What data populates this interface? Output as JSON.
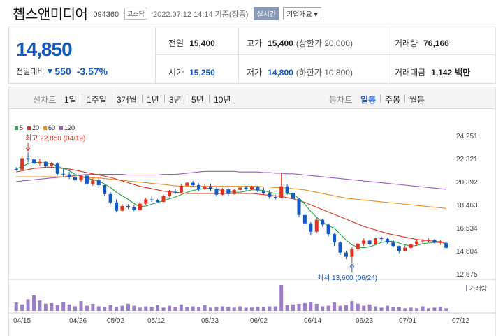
{
  "header": {
    "name": "쳅스앤미디어",
    "code": "094360",
    "market": "코스닥",
    "datetime": "2022.07.12 14:14 기준(장중)",
    "realtime_label": "실시간",
    "company_info_label": "기업개요 ▾"
  },
  "price": {
    "current": "14,850",
    "compare_label": "전일대비",
    "change": "550",
    "change_pct": "-3.57%"
  },
  "stats": {
    "prev_label": "전일",
    "prev": "15,400",
    "high_label": "고가",
    "high": "15,400",
    "upper_limit": "(상한가 20,000)",
    "volume_label": "거래량",
    "volume": "76,166",
    "open_label": "시가",
    "open": "15,250",
    "low_label": "저가",
    "low": "14,800",
    "lower_limit": "(하한가 10,800)",
    "amount_label": "거래대금",
    "amount": "1,142",
    "amount_unit": "백만"
  },
  "toolbar": {
    "line_label": "선차트",
    "line_items": [
      "1일",
      "1주일",
      "3개월",
      "1년",
      "3년",
      "5년",
      "10년"
    ],
    "candle_label": "봉차트",
    "candle_items": [
      "일봉",
      "주봉",
      "월봉"
    ],
    "active_candle": "일봉"
  },
  "colors": {
    "up": "#e0301e",
    "down": "#1259c3",
    "ma5": "#27a644",
    "ma20": "#e0301e",
    "ma60": "#f08c1c",
    "ma120": "#9b59c6",
    "volume": "#9b7fc6"
  },
  "chart_data": {
    "type": "candlestick",
    "legend": [
      "5",
      "20",
      "60",
      "120"
    ],
    "y_ticks": [
      "24,251",
      "22,321",
      "20,392",
      "18,463",
      "16,534",
      "14,604",
      "12,675"
    ],
    "ylim": [
      12675,
      24251
    ],
    "x_labels": [
      "04/15",
      "04/26",
      "05/02",
      "05/12",
      "05/23",
      "06/02",
      "06/14",
      "06/23",
      "07/01",
      "07/12"
    ],
    "volume_label": "거래량",
    "annotations": {
      "high": "최고 22,850 (04/19)",
      "low": "최저 13,600 (06/24)"
    },
    "candles": [
      [
        21450,
        21600,
        21300,
        21400
      ],
      [
        21400,
        22500,
        21300,
        22350
      ],
      [
        22350,
        22850,
        22000,
        22250
      ],
      [
        22250,
        22400,
        21800,
        21900
      ],
      [
        21900,
        22300,
        21700,
        22050
      ],
      [
        22050,
        22100,
        21600,
        21700
      ],
      [
        21700,
        22050,
        21500,
        21900
      ],
      [
        21900,
        22000,
        20900,
        21050
      ],
      [
        21050,
        21500,
        20800,
        21000
      ],
      [
        21000,
        21200,
        20600,
        20800
      ],
      [
        20800,
        20950,
        20400,
        20500
      ],
      [
        20500,
        21000,
        20350,
        20900
      ],
      [
        20900,
        21050,
        20100,
        20200
      ],
      [
        20200,
        20700,
        20050,
        20500
      ],
      [
        20500,
        20800,
        19850,
        20100
      ],
      [
        20100,
        20150,
        19200,
        19350
      ],
      [
        19350,
        19500,
        18500,
        18650
      ],
      [
        18650,
        18900,
        17800,
        17950
      ],
      [
        17950,
        18500,
        17900,
        18350
      ],
      [
        18350,
        18500,
        18100,
        18250
      ],
      [
        18250,
        18400,
        17900,
        18000
      ],
      [
        18000,
        18700,
        17950,
        18550
      ],
      [
        18550,
        19050,
        18450,
        18900
      ],
      [
        18900,
        19200,
        18700,
        18850
      ],
      [
        18850,
        18950,
        18600,
        18700
      ],
      [
        18700,
        19300,
        18650,
        19200
      ],
      [
        19200,
        19700,
        19100,
        19550
      ],
      [
        19550,
        19800,
        19350,
        19500
      ],
      [
        19500,
        20200,
        19400,
        20050
      ],
      [
        20050,
        20400,
        19950,
        20300
      ],
      [
        20300,
        20450,
        19950,
        20100
      ],
      [
        20100,
        20250,
        19600,
        19750
      ],
      [
        19750,
        20150,
        19700,
        20000
      ],
      [
        20000,
        20200,
        19600,
        19800
      ],
      [
        19800,
        19950,
        19150,
        19300
      ],
      [
        19300,
        19850,
        19250,
        19750
      ],
      [
        19750,
        19900,
        19200,
        19350
      ],
      [
        19350,
        19750,
        19300,
        19700
      ],
      [
        19700,
        20000,
        19500,
        19900
      ],
      [
        19900,
        20050,
        19600,
        19750
      ],
      [
        19750,
        20050,
        19700,
        19950
      ],
      [
        19950,
        20050,
        19500,
        19650
      ],
      [
        19650,
        19900,
        19300,
        19400
      ],
      [
        19400,
        19700,
        18950,
        19100
      ],
      [
        19100,
        19300,
        18900,
        19050
      ],
      [
        19050,
        21100,
        19000,
        20000
      ],
      [
        20000,
        20150,
        19300,
        19450
      ],
      [
        19450,
        19550,
        18850,
        18950
      ],
      [
        18950,
        19000,
        17400,
        17600
      ],
      [
        17600,
        17800,
        16650,
        16900
      ],
      [
        16900,
        17000,
        15900,
        16200
      ],
      [
        16200,
        17400,
        16100,
        17200
      ],
      [
        17200,
        17300,
        16600,
        16800
      ],
      [
        16800,
        16900,
        15800,
        16000
      ],
      [
        16000,
        16100,
        15000,
        15300
      ],
      [
        15300,
        15400,
        14250,
        14450
      ],
      [
        14450,
        14600,
        13900,
        14100
      ],
      [
        14100,
        14900,
        13600,
        14750
      ],
      [
        14750,
        15300,
        14600,
        15200
      ],
      [
        15200,
        15650,
        15000,
        15450
      ],
      [
        15450,
        15550,
        15050,
        15150
      ],
      [
        15150,
        15700,
        15100,
        15650
      ],
      [
        15650,
        15800,
        15400,
        15600
      ],
      [
        15600,
        15700,
        15200,
        15300
      ],
      [
        15300,
        15500,
        14900,
        15000
      ],
      [
        15000,
        15050,
        14400,
        14600
      ],
      [
        14600,
        15100,
        14550,
        14850
      ],
      [
        14850,
        15200,
        14700,
        15150
      ],
      [
        15150,
        15500,
        15050,
        15400
      ],
      [
        15400,
        15600,
        15200,
        15450
      ],
      [
        15450,
        15650,
        15300,
        15500
      ],
      [
        15500,
        15600,
        15200,
        15300
      ],
      [
        15300,
        15500,
        15100,
        15400
      ],
      [
        15250,
        15400,
        14800,
        14850
      ]
    ],
    "volumes": [
      13,
      10,
      18,
      24,
      16,
      11,
      12,
      9,
      14,
      10,
      7,
      15,
      8,
      11,
      7,
      6,
      9,
      6,
      8,
      11,
      8,
      5,
      7,
      6,
      9,
      5,
      8,
      6,
      10,
      6,
      7,
      6,
      9,
      5,
      6,
      7,
      6,
      5,
      7,
      5,
      5,
      6,
      6,
      7,
      7,
      40,
      9,
      10,
      11,
      12,
      14,
      11,
      7,
      8,
      13,
      8,
      9,
      15,
      11,
      8,
      10,
      7,
      5,
      8,
      6,
      6,
      4,
      5,
      4,
      7,
      4,
      5,
      6,
      4
    ],
    "ma5": [
      21450,
      21650,
      21900,
      22000,
      21990,
      21950,
      21900,
      21700,
      21500,
      21300,
      21000,
      20850,
      20700,
      20550,
      20450,
      20200,
      19900,
      19500,
      19200,
      18900,
      18550,
      18300,
      18350,
      18500,
      18650,
      18800,
      18950,
      19100,
      19300,
      19500,
      19650,
      19750,
      19800,
      19850,
      19750,
      19650,
      19550,
      19500,
      19500,
      19600,
      19700,
      19700,
      19650,
      19500,
      19400,
      19450,
      19400,
      19300,
      19000,
      18500,
      17900,
      17400,
      17000,
      16700,
      16500,
      16000,
      15500,
      15100,
      14900,
      14850,
      14950,
      15100,
      15300,
      15400,
      15400,
      15250,
      15100,
      15000,
      15050,
      15200,
      15250,
      15300,
      15300,
      15200
    ],
    "ma20": [
      21200,
      21300,
      21400,
      21500,
      21550,
      21600,
      21600,
      21550,
      21500,
      21450,
      21350,
      21250,
      21150,
      21050,
      20950,
      20850,
      20750,
      20600,
      20450,
      20300,
      20150,
      20000,
      19900,
      19800,
      19700,
      19600,
      19550,
      19500,
      19450,
      19400,
      19400,
      19400,
      19400,
      19400,
      19400,
      19400,
      19400,
      19400,
      19400,
      19400,
      19400,
      19350,
      19300,
      19250,
      19200,
      19150,
      19050,
      18950,
      18800,
      18650,
      18450,
      18250,
      18050,
      17850,
      17650,
      17450,
      17250,
      17050,
      16850,
      16650,
      16500,
      16350,
      16200,
      16050,
      15950,
      15850,
      15750,
      15650,
      15550,
      15500,
      15450,
      15400,
      15350,
      15300
    ],
    "ma60": [
      20800,
      20800,
      20800,
      20800,
      20800,
      20800,
      20800,
      20800,
      20800,
      20800,
      20800,
      20750,
      20750,
      20700,
      20700,
      20650,
      20600,
      20550,
      20500,
      20450,
      20400,
      20350,
      20300,
      20250,
      20200,
      20150,
      20100,
      20050,
      20000,
      20000,
      20000,
      20000,
      20000,
      20000,
      20000,
      20000,
      20000,
      20000,
      20000,
      20000,
      20000,
      20000,
      19950,
      19950,
      19900,
      19900,
      19850,
      19800,
      19750,
      19700,
      19600,
      19500,
      19400,
      19300,
      19200,
      19100,
      19000,
      18950,
      18900,
      18850,
      18800,
      18750,
      18700,
      18650,
      18600,
      18550,
      18500,
      18450,
      18400,
      18350,
      18300,
      18250,
      18200,
      18150
    ],
    "ma120": [
      20400,
      20450,
      20500,
      20550,
      20600,
      20650,
      20700,
      20750,
      20800,
      20850,
      20900,
      20950,
      21000,
      21000,
      21000,
      21000,
      21000,
      21000,
      21000,
      20950,
      20950,
      20950,
      20950,
      20950,
      20950,
      21000,
      21000,
      21000,
      21050,
      21100,
      21150,
      21200,
      21250,
      21250,
      21250,
      21250,
      21250,
      21250,
      21200,
      21200,
      21200,
      21200,
      21150,
      21150,
      21100,
      21100,
      21050,
      21050,
      21000,
      20950,
      20900,
      20850,
      20800,
      20750,
      20700,
      20650,
      20600,
      20550,
      20500,
      20450,
      20400,
      20350,
      20300,
      20250,
      20200,
      20150,
      20100,
      20050,
      20000,
      19950,
      19900,
      19850,
      19800,
      19750
    ]
  }
}
